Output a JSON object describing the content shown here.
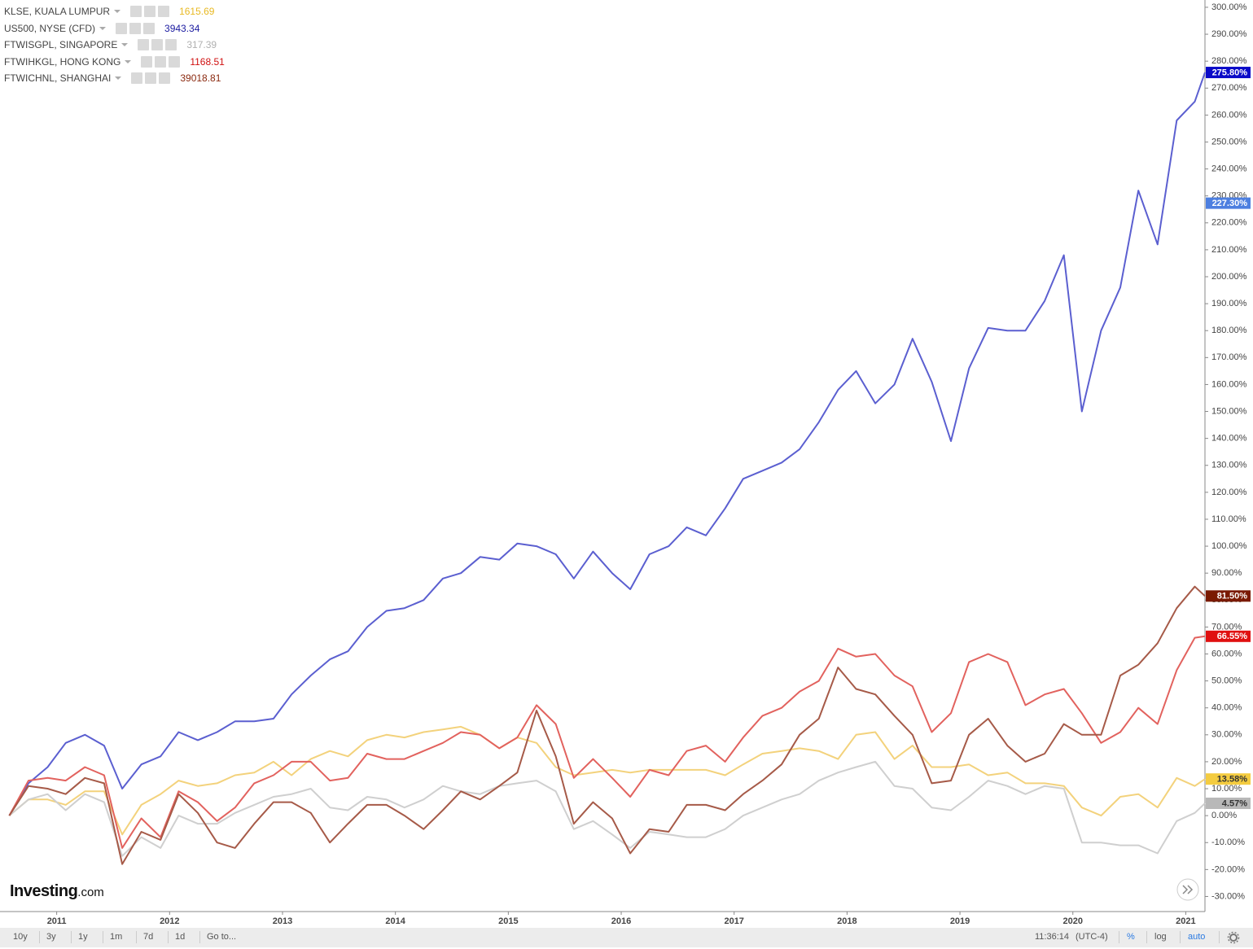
{
  "chart_data": {
    "type": "line",
    "grid": false,
    "x": [
      2010.58,
      2010.75,
      2010.92,
      2011.08,
      2011.25,
      2011.42,
      2011.58,
      2011.75,
      2011.92,
      2012.08,
      2012.25,
      2012.42,
      2012.58,
      2012.75,
      2012.92,
      2013.08,
      2013.25,
      2013.42,
      2013.58,
      2013.75,
      2013.92,
      2014.08,
      2014.25,
      2014.42,
      2014.58,
      2014.75,
      2014.92,
      2015.08,
      2015.25,
      2015.42,
      2015.58,
      2015.75,
      2015.92,
      2016.08,
      2016.25,
      2016.42,
      2016.58,
      2016.75,
      2016.92,
      2017.08,
      2017.25,
      2017.42,
      2017.58,
      2017.75,
      2017.92,
      2018.08,
      2018.25,
      2018.42,
      2018.58,
      2018.75,
      2018.92,
      2019.08,
      2019.25,
      2019.42,
      2019.58,
      2019.75,
      2019.92,
      2020.08,
      2020.25,
      2020.42,
      2020.58,
      2020.75,
      2020.92,
      2021.08,
      2021.17
    ],
    "xlim": [
      2010.57,
      2021.17
    ],
    "xticks": [
      2011,
      2012,
      2013,
      2014,
      2015,
      2016,
      2017,
      2018,
      2019,
      2020,
      2021
    ],
    "ylim": [
      -35.6,
      302.7
    ],
    "yticks": [
      {
        "value": -30,
        "label": "-30.00%"
      },
      {
        "value": -20,
        "label": "-20.00%"
      },
      {
        "value": -10,
        "label": "-10.00%"
      },
      {
        "value": 0,
        "label": "0.00%"
      },
      {
        "value": 10,
        "label": "10.00%"
      },
      {
        "value": 20,
        "label": "20.00%"
      },
      {
        "value": 30,
        "label": "30.00%"
      },
      {
        "value": 40,
        "label": "40.00%"
      },
      {
        "value": 50,
        "label": "50.00%"
      },
      {
        "value": 60,
        "label": "60.00%"
      },
      {
        "value": 70,
        "label": "70.00%"
      },
      {
        "value": 80,
        "label": "80.00%"
      },
      {
        "value": 90,
        "label": "90.00%"
      },
      {
        "value": 100,
        "label": "100.00%"
      },
      {
        "value": 110,
        "label": "110.00%"
      },
      {
        "value": 120,
        "label": "120.00%"
      },
      {
        "value": 130,
        "label": "130.00%"
      },
      {
        "value": 140,
        "label": "140.00%"
      },
      {
        "value": 150,
        "label": "150.00%"
      },
      {
        "value": 160,
        "label": "160.00%"
      },
      {
        "value": 170,
        "label": "170.00%"
      },
      {
        "value": 180,
        "label": "180.00%"
      },
      {
        "value": 190,
        "label": "190.00%"
      },
      {
        "value": 200,
        "label": "200.00%"
      },
      {
        "value": 210,
        "label": "210.00%"
      },
      {
        "value": 220,
        "label": "220.00%"
      },
      {
        "value": 230,
        "label": "230.00%"
      },
      {
        "value": 240,
        "label": "240.00%"
      },
      {
        "value": 250,
        "label": "250.00%"
      },
      {
        "value": 260,
        "label": "260.00%"
      },
      {
        "value": 270,
        "label": "270.00%"
      },
      {
        "value": 280,
        "label": "280.00%"
      },
      {
        "value": 290,
        "label": "290.00%"
      },
      {
        "value": 300,
        "label": "300.00%"
      }
    ],
    "series": [
      {
        "name": "KLSE, KUALA LUMPUR",
        "price": 1615.69,
        "color": "#f3d27c",
        "legend_color": "#e8b923",
        "badge_text": "#333333",
        "end_label": "13.58%",
        "values": [
          0,
          6,
          6,
          4,
          9,
          9,
          -7,
          4,
          8,
          13,
          11,
          12,
          15,
          16,
          20,
          15,
          21,
          24,
          22,
          28,
          30,
          29,
          31,
          32,
          33,
          30,
          25,
          29,
          27,
          18,
          15,
          16,
          17,
          16,
          17,
          17,
          17,
          17,
          15,
          19,
          23,
          24,
          25,
          24,
          21,
          30,
          31,
          21,
          26,
          18,
          18,
          19,
          15,
          16,
          12,
          12,
          11,
          3,
          0,
          7,
          8,
          3,
          14,
          11,
          13.58
        ]
      },
      {
        "name": "US500, NYSE (CFD)",
        "price": 3943.34,
        "color": "#5b5fd0",
        "legend_color": "#1a1aa0",
        "badge_text": "#ffffff",
        "end_label": "275.80%",
        "values": [
          0,
          12,
          18,
          27,
          30,
          26,
          10,
          19,
          22,
          31,
          28,
          31,
          35,
          35,
          36,
          45,
          52,
          58,
          61,
          70,
          76,
          77,
          80,
          88,
          90,
          96,
          95,
          101,
          100,
          97,
          88,
          98,
          90,
          84,
          97,
          100,
          107,
          104,
          114,
          125,
          128,
          131,
          136,
          146,
          158,
          165,
          153,
          160,
          177,
          161,
          139,
          166,
          181,
          180,
          180,
          191,
          208,
          150,
          180,
          196,
          232,
          212,
          258,
          265,
          275.8
        ]
      },
      {
        "name": "FTWISGPL, SINGAPORE",
        "price": 317.39,
        "color": "#cfcfcf",
        "legend_color": "#b0b0b0",
        "badge_text": "#333333",
        "end_label": "4.57%",
        "values": [
          0,
          6,
          8,
          2,
          8,
          5,
          -15,
          -8,
          -12,
          0,
          -3,
          -3,
          1,
          4,
          7,
          8,
          10,
          3,
          2,
          7,
          6,
          3,
          6,
          11,
          9,
          8,
          11,
          12,
          13,
          9,
          -5,
          -2,
          -7,
          -12,
          -6,
          -7,
          -8,
          -8,
          -5,
          0,
          3,
          6,
          8,
          13,
          16,
          18,
          20,
          11,
          10,
          3,
          2,
          7,
          13,
          11,
          8,
          11,
          10,
          -10,
          -10,
          -11,
          -11,
          -14,
          -2,
          1,
          4.57
        ]
      },
      {
        "name": "FTWIHKGL, HONG KONG",
        "price": 1168.51,
        "color": "#e2625e",
        "legend_color": "#d01010",
        "badge_text": "#ffffff",
        "end_label": "66.55%",
        "values": [
          0,
          13,
          14,
          13,
          18,
          15,
          -12,
          -1,
          -8,
          9,
          5,
          -2,
          3,
          12,
          15,
          20,
          20,
          13,
          14,
          23,
          21,
          21,
          24,
          27,
          31,
          30,
          25,
          29,
          41,
          34,
          14,
          21,
          14,
          7,
          17,
          15,
          24,
          26,
          20,
          29,
          37,
          40,
          46,
          50,
          62,
          59,
          60,
          52,
          48,
          31,
          38,
          57,
          60,
          57,
          41,
          45,
          47,
          38,
          27,
          31,
          40,
          34,
          54,
          66,
          66.55
        ]
      },
      {
        "name": "FTWICHNL, SHANGHAI",
        "price": 39018.81,
        "color": "#a65a48",
        "legend_color": "#8b2a10",
        "badge_text": "#ffffff",
        "end_label": "81.50%",
        "values": [
          0,
          11,
          10,
          8,
          14,
          12,
          -18,
          -6,
          -9,
          8,
          1,
          -10,
          -12,
          -3,
          5,
          5,
          1,
          -10,
          -3,
          4,
          4,
          0,
          -5,
          2,
          9,
          6,
          11,
          16,
          39,
          22,
          -3,
          5,
          -1,
          -14,
          -5,
          -6,
          4,
          4,
          2,
          8,
          13,
          19,
          30,
          36,
          55,
          47,
          45,
          37,
          30,
          12,
          13,
          30,
          36,
          26,
          20,
          23,
          34,
          30,
          30,
          52,
          56,
          64,
          77,
          85,
          81.5
        ]
      }
    ],
    "badge_colors": [
      "#f4cc40",
      "#0a0ac8",
      "#b8b8b8",
      "#e01010",
      "#7a1a00"
    ],
    "marker": {
      "value": 227.3,
      "label": "227.30%",
      "color": "#4d7fe0"
    },
    "logo": {
      "name": "Investing",
      "suffix": ".com"
    },
    "toolbar": {
      "ranges": [
        "10y",
        "3y",
        "1y",
        "1m",
        "7d",
        "1d",
        "Go to..."
      ],
      "time": "11:36:14",
      "timezone": "(UTC-4)",
      "modes": [
        "%",
        "log",
        "auto"
      ]
    }
  }
}
